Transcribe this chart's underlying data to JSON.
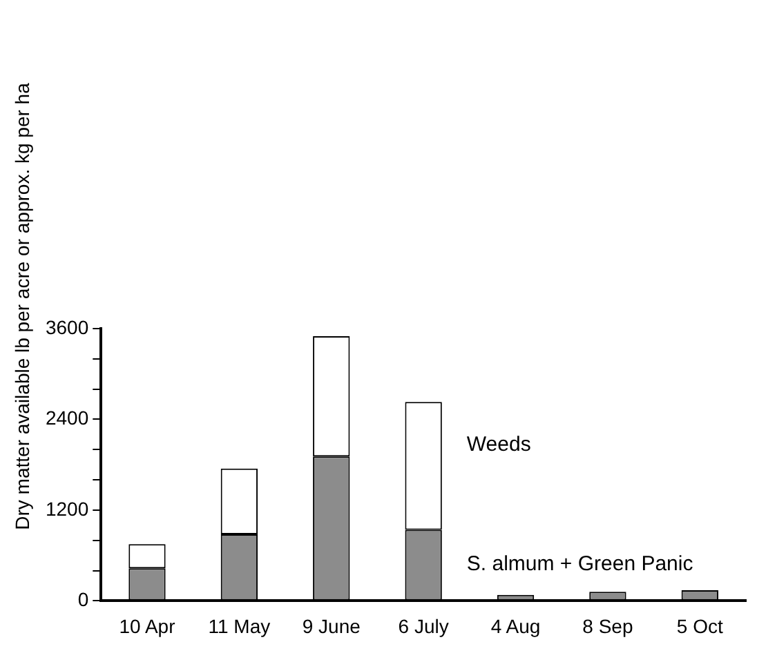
{
  "chart_data": {
    "type": "bar",
    "stacked": true,
    "ylabel": "Dry matter available lb per acre or approx. kg per ha",
    "categories": [
      "10 Apr",
      "11 May",
      "9 June",
      "6 July",
      "4 Aug",
      "8 Sep",
      "5 Oct"
    ],
    "series": [
      {
        "name": "S. almum + Green Panic",
        "color": "#8c8c8c",
        "values": [
          430,
          880,
          1910,
          940,
          80,
          120,
          140
        ]
      },
      {
        "name": "Weeds",
        "color": "#ffffff",
        "values": [
          320,
          870,
          1590,
          1690,
          null,
          null,
          null
        ]
      }
    ],
    "ylim": [
      0,
      3600
    ],
    "yticks": [
      0,
      {
        "value": 400,
        "label": null
      },
      {
        "value": 800,
        "label": null
      },
      1200,
      {
        "value": 1600,
        "label": null
      },
      {
        "value": 2000,
        "label": null
      },
      2400,
      {
        "value": 2800,
        "label": null
      },
      {
        "value": 3200,
        "label": null
      },
      3600
    ],
    "grid": false,
    "legend": false
  }
}
